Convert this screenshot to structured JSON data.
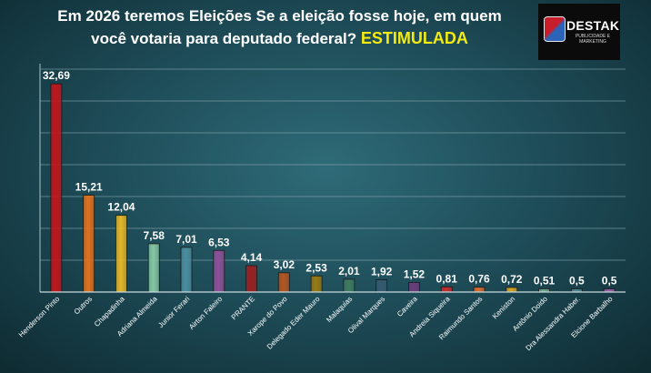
{
  "title": {
    "line1": "Em 2026 teremos Eleições  Se a eleição fosse hoje, em quem",
    "line2": "você votaria para deputado federal?",
    "highlight": "ESTIMULADA"
  },
  "logo": {
    "brand": "DESTAK",
    "tagline": "PUBLICIDADE E MARKETING",
    "colors": [
      "#c81e2c",
      "#2a63b8"
    ]
  },
  "chart_data": {
    "type": "bar",
    "categories": [
      "Henderson Pinto",
      "Outros",
      "Chapadinha",
      "Adriana Almeida",
      "Junior Ferari",
      "Airton Faleiro",
      "PRANTE",
      "Xarope do Povo",
      "Delegado Eder Mauro",
      "Malaquias",
      "Olival Marques",
      "Caveira",
      "Andreia Siqueira",
      "Raimundo Santos",
      "Keniston",
      "Antônio Doido",
      "Dra Alessandra Haber.",
      "Elcione Barbalho"
    ],
    "values": [
      32.69,
      15.21,
      12.04,
      7.58,
      7.01,
      6.53,
      4.14,
      3.02,
      2.53,
      2.01,
      1.92,
      1.52,
      0.81,
      0.76,
      0.72,
      0.51,
      0.5,
      0.5
    ],
    "value_labels": [
      "32,69",
      "15,21",
      "12,04",
      "7,58",
      "7,01",
      "6,53",
      "4,14",
      "3,02",
      "2,53",
      "2,01",
      "1,92",
      "1,52",
      "0,81",
      "0,76",
      "0,72",
      "0,51",
      "0,5",
      "0,5"
    ],
    "colors": [
      "#c1161b",
      "#e2711d",
      "#e6b727",
      "#86c6a4",
      "#4b8ea0",
      "#8f4f9a",
      "#9c1f1f",
      "#b5551f",
      "#9a7a12",
      "#3f7a5f",
      "#36596f",
      "#6b3d7a",
      "#c92a2a",
      "#d96a2b",
      "#d9a421",
      "#6fa88a",
      "#4f8796",
      "#9a5da8"
    ],
    "ylim": [
      0,
      35
    ],
    "grid": true,
    "legend": "none"
  }
}
